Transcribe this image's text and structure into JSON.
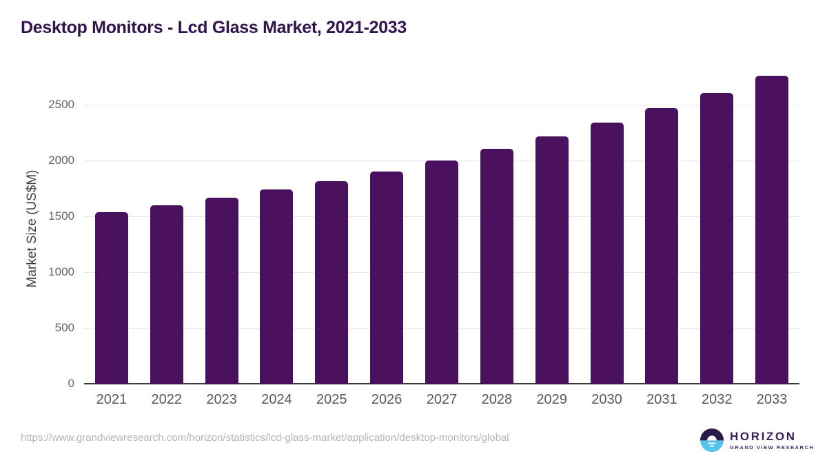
{
  "title": "Desktop Monitors - Lcd Glass Market, 2021-2033",
  "chart_data": {
    "type": "bar",
    "title": "Desktop Monitors - Lcd Glass Market, 2021-2033",
    "categories": [
      "2021",
      "2022",
      "2023",
      "2024",
      "2025",
      "2026",
      "2027",
      "2028",
      "2029",
      "2030",
      "2031",
      "2032",
      "2033"
    ],
    "values": [
      1545,
      1605,
      1670,
      1745,
      1820,
      1905,
      2005,
      2110,
      2225,
      2345,
      2475,
      2610,
      2765
    ],
    "xlabel": "",
    "ylabel": "Market Size (US$M)",
    "ylim": [
      0,
      2800
    ],
    "yticks": [
      0,
      500,
      1000,
      1500,
      2000,
      2500
    ],
    "grid": true,
    "legend": "none",
    "bar_color": "#49105e"
  },
  "colors": {
    "title": "#33134e",
    "bar": "#49105e",
    "gridline": "#e7e7e7",
    "axis_line": "#3a3a3a",
    "tick_label": "#666666",
    "x_label": "#58595b",
    "url_text": "#b4b4b4",
    "logo_dark": "#2a1a47",
    "logo_blue": "#56c3ea",
    "logo_text": "#342258"
  },
  "footer": {
    "source_url": "https://www.grandviewresearch.com/horizon/statistics/lcd-glass-market/application/desktop-monitors/global"
  },
  "logo": {
    "name": "HORIZON",
    "subtitle": "GRAND VIEW RESEARCH",
    "mark": "horizon-sun-circle-icon"
  }
}
